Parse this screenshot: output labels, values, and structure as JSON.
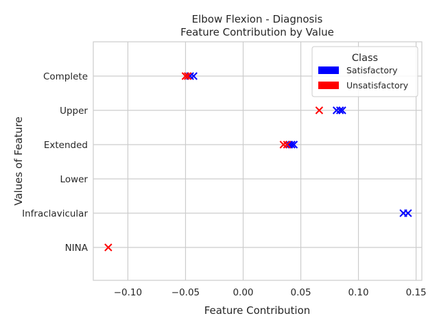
{
  "chart_data": {
    "type": "scatter",
    "title": "Elbow Flexion - Diagnosis",
    "subtitle": "Feature Contribution by Value",
    "xlabel": "Feature Contribution",
    "ylabel": "Values of Feature",
    "xlim": [
      -0.13,
      0.155
    ],
    "xticks": [
      -0.1,
      -0.05,
      0.0,
      0.05,
      0.1,
      0.15
    ],
    "xtick_labels": [
      "−0.10",
      "−0.05",
      "0.00",
      "0.05",
      "0.10",
      "0.15"
    ],
    "categories": [
      "Complete",
      "Upper",
      "Extended",
      "Lower",
      "Infraclavicular",
      "NINA"
    ],
    "grid": true,
    "marker": "x",
    "legend": {
      "title": "Class",
      "position": "top-right",
      "entries": [
        {
          "label": "Satisfactory",
          "color": "#0000ff"
        },
        {
          "label": "Unsatisfactory",
          "color": "#ff0000"
        }
      ]
    },
    "series": [
      {
        "name": "Satisfactory",
        "color": "#0000ff",
        "points": [
          {
            "category": "Complete",
            "x": -0.046
          },
          {
            "category": "Complete",
            "x": -0.043
          },
          {
            "category": "Upper",
            "x": 0.081
          },
          {
            "category": "Upper",
            "x": 0.084
          },
          {
            "category": "Upper",
            "x": 0.086
          },
          {
            "category": "Extended",
            "x": 0.04
          },
          {
            "category": "Extended",
            "x": 0.042
          },
          {
            "category": "Extended",
            "x": 0.044
          },
          {
            "category": "Infraclavicular",
            "x": 0.139
          },
          {
            "category": "Infraclavicular",
            "x": 0.143
          }
        ]
      },
      {
        "name": "Unsatisfactory",
        "color": "#ff0000",
        "points": [
          {
            "category": "Complete",
            "x": -0.05
          },
          {
            "category": "Complete",
            "x": -0.048
          },
          {
            "category": "Upper",
            "x": 0.066
          },
          {
            "category": "Extended",
            "x": 0.035
          },
          {
            "category": "Extended",
            "x": 0.038
          },
          {
            "category": "NINA",
            "x": -0.117
          }
        ]
      }
    ]
  }
}
